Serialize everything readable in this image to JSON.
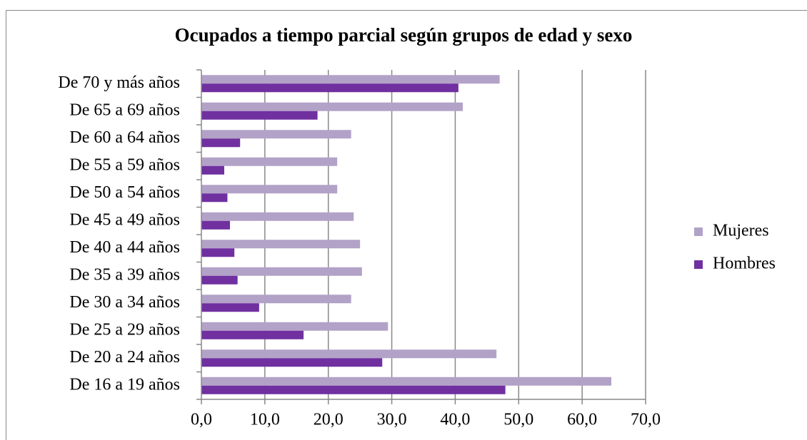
{
  "chart_data": {
    "type": "hbar",
    "title": "Ocupados a tiempo parcial según grupos de edad y sexo",
    "categories": [
      "De 70 y más años",
      "De 65 a 69 años",
      "De 60 a 64 años",
      "De 55 a 59 años",
      "De 50 a 54 años",
      "De 45 a 49 años",
      "De 40 a 44 años",
      "De 35 a 39 años",
      "De 30 a 34 años",
      "De 25 a 29 años",
      "De 20 a 24 años",
      "De 16 a 19 años"
    ],
    "series": [
      {
        "name": "Mujeres",
        "color": "#b3a2c7",
        "values": [
          47.0,
          41.2,
          23.6,
          21.4,
          21.4,
          24.0,
          25.0,
          25.3,
          23.6,
          29.4,
          46.5,
          64.6
        ]
      },
      {
        "name": "Hombres",
        "color": "#7030a0",
        "values": [
          40.5,
          18.3,
          6.1,
          3.6,
          4.1,
          4.5,
          5.2,
          5.7,
          9.1,
          16.1,
          28.5,
          47.9
        ]
      }
    ],
    "xlim": [
      0,
      70
    ],
    "xticks": [
      {
        "value": 0,
        "label": "0,0"
      },
      {
        "value": 10,
        "label": "10,0"
      },
      {
        "value": 20,
        "label": "20,0"
      },
      {
        "value": 30,
        "label": "30,0"
      },
      {
        "value": 40,
        "label": "40,0"
      },
      {
        "value": 50,
        "label": "50,0"
      },
      {
        "value": 60,
        "label": "60,0"
      },
      {
        "value": 70,
        "label": "70,0"
      }
    ],
    "grid": true,
    "legend": "right"
  }
}
